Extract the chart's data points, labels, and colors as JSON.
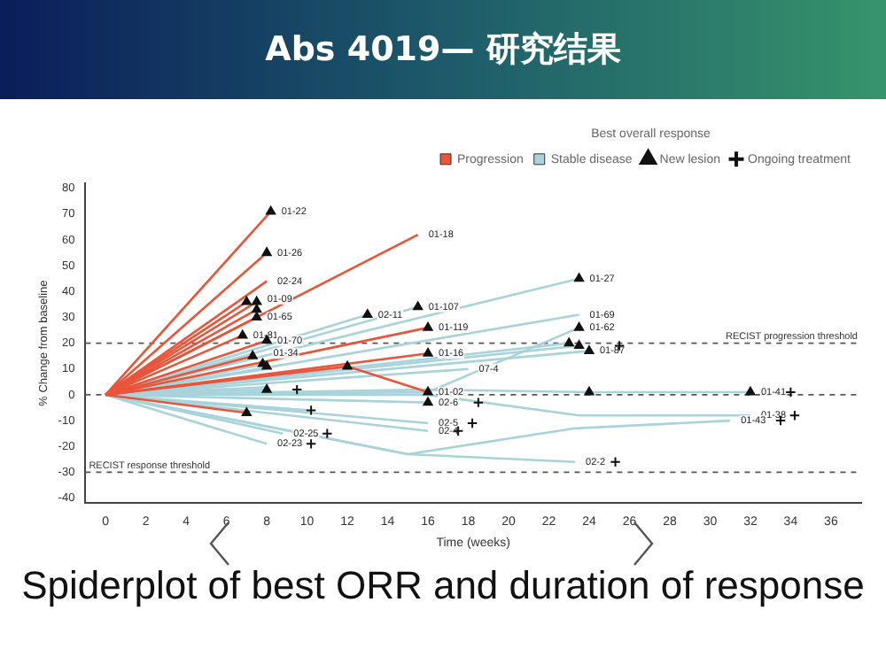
{
  "chart_data": {
    "type": "line",
    "title": "Abs 4019— 研究结果",
    "xlabel": "Time (weeks)",
    "ylabel": "% Change from baseline",
    "legend": "top right",
    "legend_title": "Best overall response",
    "grid": false,
    "marker": "none",
    "xlim": [
      -1,
      37.5
    ],
    "xticks": [
      0,
      2,
      4,
      6,
      8,
      10,
      12,
      14,
      16,
      18,
      20,
      22,
      24,
      26,
      28,
      30,
      32,
      34,
      36
    ],
    "ylim": [
      -42,
      82
    ],
    "yticks": [
      -40,
      -30,
      -20,
      -10,
      0,
      10,
      20,
      30,
      40,
      50,
      60,
      70,
      80
    ],
    "ref_lines": [
      {
        "axis": "y",
        "value": 20,
        "label": "RECIST progression threshold",
        "line_style": "dashed"
      },
      {
        "axis": "y",
        "value": 0,
        "line_style": "dashed"
      },
      {
        "axis": "y",
        "value": -30,
        "label": "RECIST response threshold",
        "line_style": "dashed"
      }
    ],
    "series": [
      {
        "name": "Progression",
        "color": "#e8553a",
        "x": [
          0,
          8.2
        ],
        "values": [
          0,
          71
        ]
      },
      {
        "color": "#e8553a",
        "x": [
          0,
          15.5
        ],
        "values": [
          0,
          62
        ]
      },
      {
        "color": "#e8553a",
        "x": [
          0,
          8
        ],
        "values": [
          0,
          55
        ]
      },
      {
        "color": "#e8553a",
        "x": [
          0,
          8
        ],
        "values": [
          0,
          44
        ]
      },
      {
        "color": "#e8553a",
        "x": [
          0,
          7
        ],
        "values": [
          0,
          36
        ]
      },
      {
        "color": "#e8553a",
        "x": [
          0,
          7.5
        ],
        "values": [
          0,
          36
        ]
      },
      {
        "color": "#e8553a",
        "x": [
          0,
          7.5
        ],
        "values": [
          0,
          33
        ]
      },
      {
        "color": "#e8553a",
        "x": [
          0,
          7.5
        ],
        "values": [
          0,
          30
        ]
      },
      {
        "color": "#e8553a",
        "x": [
          0,
          6.8
        ],
        "values": [
          0,
          23
        ]
      },
      {
        "color": "#e8553a",
        "x": [
          0,
          8
        ],
        "values": [
          0,
          21
        ]
      },
      {
        "color": "#e8553a",
        "x": [
          0,
          12,
          16
        ],
        "values": [
          0,
          11,
          1
        ]
      },
      {
        "color": "#e8553a",
        "x": [
          0,
          16
        ],
        "values": [
          0,
          16
        ]
      },
      {
        "color": "#e8553a",
        "x": [
          0,
          16
        ],
        "values": [
          0,
          26
        ]
      },
      {
        "color": "#e8553a",
        "x": [
          0,
          7
        ],
        "values": [
          0,
          -7
        ]
      },
      {
        "color": "#e8553a",
        "x": [
          0,
          7.3
        ],
        "values": [
          0,
          15
        ]
      },
      {
        "name": "Stable disease",
        "color": "#a9d3db",
        "x": [
          0,
          23.5
        ],
        "values": [
          0,
          45
        ]
      },
      {
        "color": "#a9d3db",
        "x": [
          0,
          23.5
        ],
        "values": [
          0,
          31
        ]
      },
      {
        "color": "#a9d3db",
        "x": [
          0,
          16,
          23.5
        ],
        "values": [
          0,
          1,
          26
        ]
      },
      {
        "color": "#a9d3db",
        "x": [
          0,
          13
        ],
        "values": [
          0,
          31
        ]
      },
      {
        "color": "#a9d3db",
        "x": [
          0,
          15.5
        ],
        "values": [
          0,
          34
        ]
      },
      {
        "color": "#a9d3db",
        "x": [
          0,
          23
        ],
        "values": [
          0,
          20
        ]
      },
      {
        "color": "#a9d3db",
        "x": [
          0,
          23.5
        ],
        "values": [
          0,
          19
        ]
      },
      {
        "color": "#a9d3db",
        "x": [
          0,
          24
        ],
        "values": [
          0,
          17
        ]
      },
      {
        "color": "#a9d3db",
        "x": [
          0,
          18
        ],
        "values": [
          0,
          10
        ]
      },
      {
        "color": "#a9d3db",
        "x": [
          0,
          8
        ],
        "values": [
          0,
          12
        ]
      },
      {
        "color": "#a9d3db",
        "x": [
          0,
          8
        ],
        "values": [
          0,
          10
        ]
      },
      {
        "color": "#a9d3db",
        "x": [
          0,
          8
        ],
        "values": [
          0,
          2
        ]
      },
      {
        "color": "#a9d3db",
        "x": [
          0,
          16,
          24,
          32
        ],
        "values": [
          0,
          2,
          1,
          1
        ]
      },
      {
        "color": "#a9d3db",
        "x": [
          0,
          16,
          23.5,
          32
        ],
        "values": [
          0,
          0,
          -8,
          -8
        ]
      },
      {
        "color": "#a9d3db",
        "x": [
          0,
          15,
          23.3,
          31
        ],
        "values": [
          0,
          -23,
          -13,
          -10
        ]
      },
      {
        "color": "#a9d3db",
        "x": [
          0,
          15,
          23.3
        ],
        "values": [
          0,
          -23,
          -26
        ]
      },
      {
        "color": "#a9d3db",
        "x": [
          0,
          16
        ],
        "values": [
          0,
          -14
        ]
      },
      {
        "color": "#a9d3db",
        "x": [
          0,
          16
        ],
        "values": [
          0,
          -11
        ]
      },
      {
        "color": "#a9d3db",
        "x": [
          0,
          16
        ],
        "values": [
          0,
          -3
        ]
      },
      {
        "color": "#a9d3db",
        "x": [
          0,
          8.8
        ],
        "values": [
          0,
          -15
        ]
      },
      {
        "color": "#a9d3db",
        "x": [
          0,
          8
        ],
        "values": [
          0,
          -19
        ]
      },
      {
        "color": "#a9d3db",
        "x": [
          0,
          10
        ],
        "values": [
          0,
          -6
        ]
      },
      {
        "color": "#a9d3db",
        "x": [
          0,
          8
        ],
        "values": [
          0,
          3
        ]
      },
      {
        "name": "New lesion",
        "type": "scatter",
        "marker": "triangle",
        "color": "#111111",
        "x": [
          8.2,
          8,
          7,
          7.5,
          7.5,
          7.5,
          6.8,
          8,
          7.3,
          7.8,
          8,
          12,
          16,
          16,
          16,
          13,
          15.5,
          23.5,
          23.5,
          23,
          23.5,
          24,
          7,
          8,
          24,
          32,
          16
        ],
        "values": [
          71,
          55,
          36,
          36,
          33,
          30,
          23,
          21,
          15,
          12,
          11,
          11,
          1,
          16,
          26,
          31,
          34,
          45,
          26,
          20,
          19,
          17,
          -7,
          2,
          1,
          1,
          -3
        ]
      },
      {
        "name": "Ongoing treatment",
        "type": "scatter",
        "marker": "cross",
        "color": "#111111",
        "x": [
          18.5,
          18.2,
          17.5,
          11,
          10.2,
          10.2,
          34,
          34.2,
          33.5,
          25.3,
          25.5,
          9.5
        ],
        "values": [
          -3,
          -11,
          -14,
          -15,
          -19,
          -6,
          1,
          -8,
          -10,
          -26,
          19,
          2
        ]
      }
    ],
    "annotations": [
      {
        "text": "01-22",
        "x": 8.2,
        "y": 71
      },
      {
        "text": "01-18",
        "x": 15.5,
        "y": 62
      },
      {
        "text": "01-26",
        "x": 8,
        "y": 55
      },
      {
        "text": "02-24",
        "x": 8,
        "y": 44
      },
      {
        "text": "01-09",
        "x": 7.5,
        "y": 37
      },
      {
        "text": "01-65",
        "x": 7.5,
        "y": 30
      },
      {
        "text": "01-81",
        "x": 6.8,
        "y": 23
      },
      {
        "text": "01-70",
        "x": 8,
        "y": 21
      },
      {
        "text": "01-34",
        "x": 7.8,
        "y": 16
      },
      {
        "text": "02-11",
        "x": 13,
        "y": 31
      },
      {
        "text": "01-107",
        "x": 15.5,
        "y": 34
      },
      {
        "text": "01-119",
        "x": 16,
        "y": 26
      },
      {
        "text": "01-16",
        "x": 16,
        "y": 16
      },
      {
        "text": "01-02",
        "x": 16,
        "y": 1
      },
      {
        "text": "02-6",
        "x": 16,
        "y": -3
      },
      {
        "text": "02-5",
        "x": 16,
        "y": -11
      },
      {
        "text": "02-4",
        "x": 16,
        "y": -14
      },
      {
        "text": "02-25",
        "x": 8.8,
        "y": -15
      },
      {
        "text": "02-23",
        "x": 8,
        "y": -19
      },
      {
        "text": "01-27",
        "x": 23.5,
        "y": 45
      },
      {
        "text": "01-69",
        "x": 23.5,
        "y": 31
      },
      {
        "text": "01-62",
        "x": 23.5,
        "y": 26
      },
      {
        "text": "01-87",
        "x": 24,
        "y": 17
      },
      {
        "text": "07-4",
        "x": 18,
        "y": 10
      },
      {
        "text": "01-41",
        "x": 32,
        "y": 1
      },
      {
        "text": "01-38",
        "x": 32,
        "y": -8
      },
      {
        "text": "01-43",
        "x": 31,
        "y": -10
      },
      {
        "text": "02-2",
        "x": 23.3,
        "y": -26
      },
      "Spiderplot of best ORR and duration of response"
    ]
  }
}
